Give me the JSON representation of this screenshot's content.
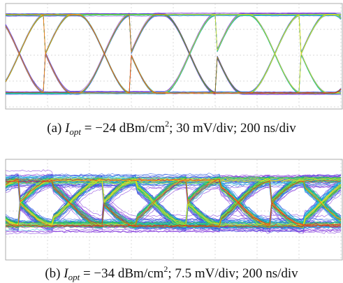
{
  "figure": {
    "panels": [
      {
        "caption": {
          "label": "(a)",
          "symbol": "I",
          "subscript": "opt",
          "relation": "= −24 dBm/cm",
          "superscript": "2",
          "settings": "; 30 mV/div; 200 ns/div"
        }
      },
      {
        "caption": {
          "label": "(b)",
          "symbol": "I",
          "subscript": "opt",
          "relation": "= −34 dBm/cm",
          "superscript": "2",
          "settings": "; 7.5 mV/div; 200 ns/div"
        }
      }
    ]
  }
}
